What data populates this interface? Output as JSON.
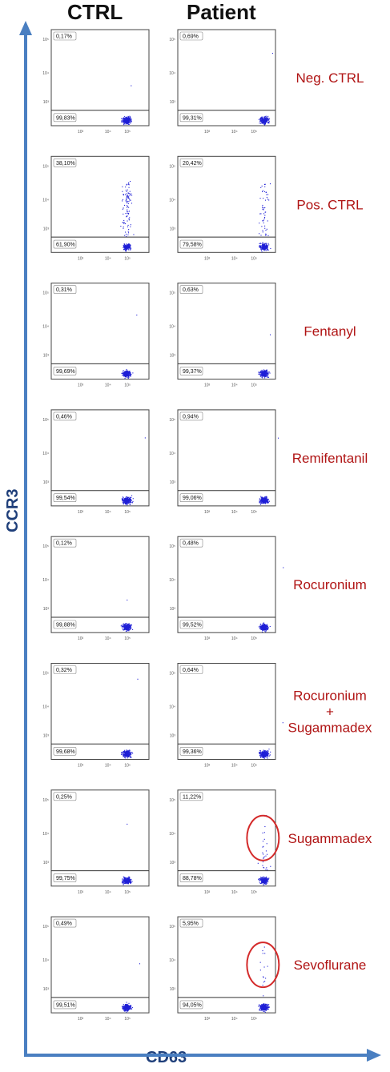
{
  "columns": {
    "ctrl": "CTRL",
    "patient": "Patient"
  },
  "axes": {
    "y_label": "CCR3",
    "x_label": "CD63"
  },
  "colors": {
    "axis_arrow": "#4a7fc1",
    "dots": "#1f1fd6",
    "label_text": "#b01414",
    "circle": "#d42a2a",
    "gate_line": "#333333",
    "axis_text": "#1f3f7a"
  },
  "tick_labels": {
    "x": [
      "10³",
      "10⁴",
      "10⁵"
    ],
    "y": [
      "10⁵",
      "10⁴",
      "10³"
    ]
  },
  "chart_data": {
    "type": "scatter",
    "x_scale": "log",
    "y_scale": "log",
    "panels": [
      {
        "condition": [
          "Neg. CTRL"
        ],
        "ctrl": {
          "upper_pct": "0,17%",
          "lower_pct": "99,83%"
        },
        "patient": {
          "upper_pct": "0,69%",
          "lower_pct": "99,31%"
        }
      },
      {
        "condition": [
          "Pos. CTRL"
        ],
        "ctrl": {
          "upper_pct": "38,10%",
          "lower_pct": "61,90%"
        },
        "patient": {
          "upper_pct": "20,42%",
          "lower_pct": "79,58%"
        }
      },
      {
        "condition": [
          "Fentanyl"
        ],
        "ctrl": {
          "upper_pct": "0,31%",
          "lower_pct": "99,69%"
        },
        "patient": {
          "upper_pct": "0,63%",
          "lower_pct": "99,37%"
        }
      },
      {
        "condition": [
          "Remifentanil"
        ],
        "ctrl": {
          "upper_pct": "0,46%",
          "lower_pct": "99,54%"
        },
        "patient": {
          "upper_pct": "0,94%",
          "lower_pct": "99,06%"
        }
      },
      {
        "condition": [
          "Rocuronium"
        ],
        "ctrl": {
          "upper_pct": "0,12%",
          "lower_pct": "99,88%"
        },
        "patient": {
          "upper_pct": "0,48%",
          "lower_pct": "99,52%"
        }
      },
      {
        "condition": [
          "Rocuronium",
          "+",
          "Sugammadex"
        ],
        "ctrl": {
          "upper_pct": "0,32%",
          "lower_pct": "99,68%"
        },
        "patient": {
          "upper_pct": "0,64%",
          "lower_pct": "99,36%"
        }
      },
      {
        "condition": [
          "Sugammadex"
        ],
        "ctrl": {
          "upper_pct": "0,25%",
          "lower_pct": "99,75%"
        },
        "patient": {
          "upper_pct": "11,22%",
          "lower_pct": "88,78%",
          "highlighted": true
        }
      },
      {
        "condition": [
          "Sevoflurane"
        ],
        "ctrl": {
          "upper_pct": "0,49%",
          "lower_pct": "99,51%"
        },
        "patient": {
          "upper_pct": "5,95%",
          "lower_pct": "94,05%",
          "highlighted": true
        }
      }
    ]
  }
}
